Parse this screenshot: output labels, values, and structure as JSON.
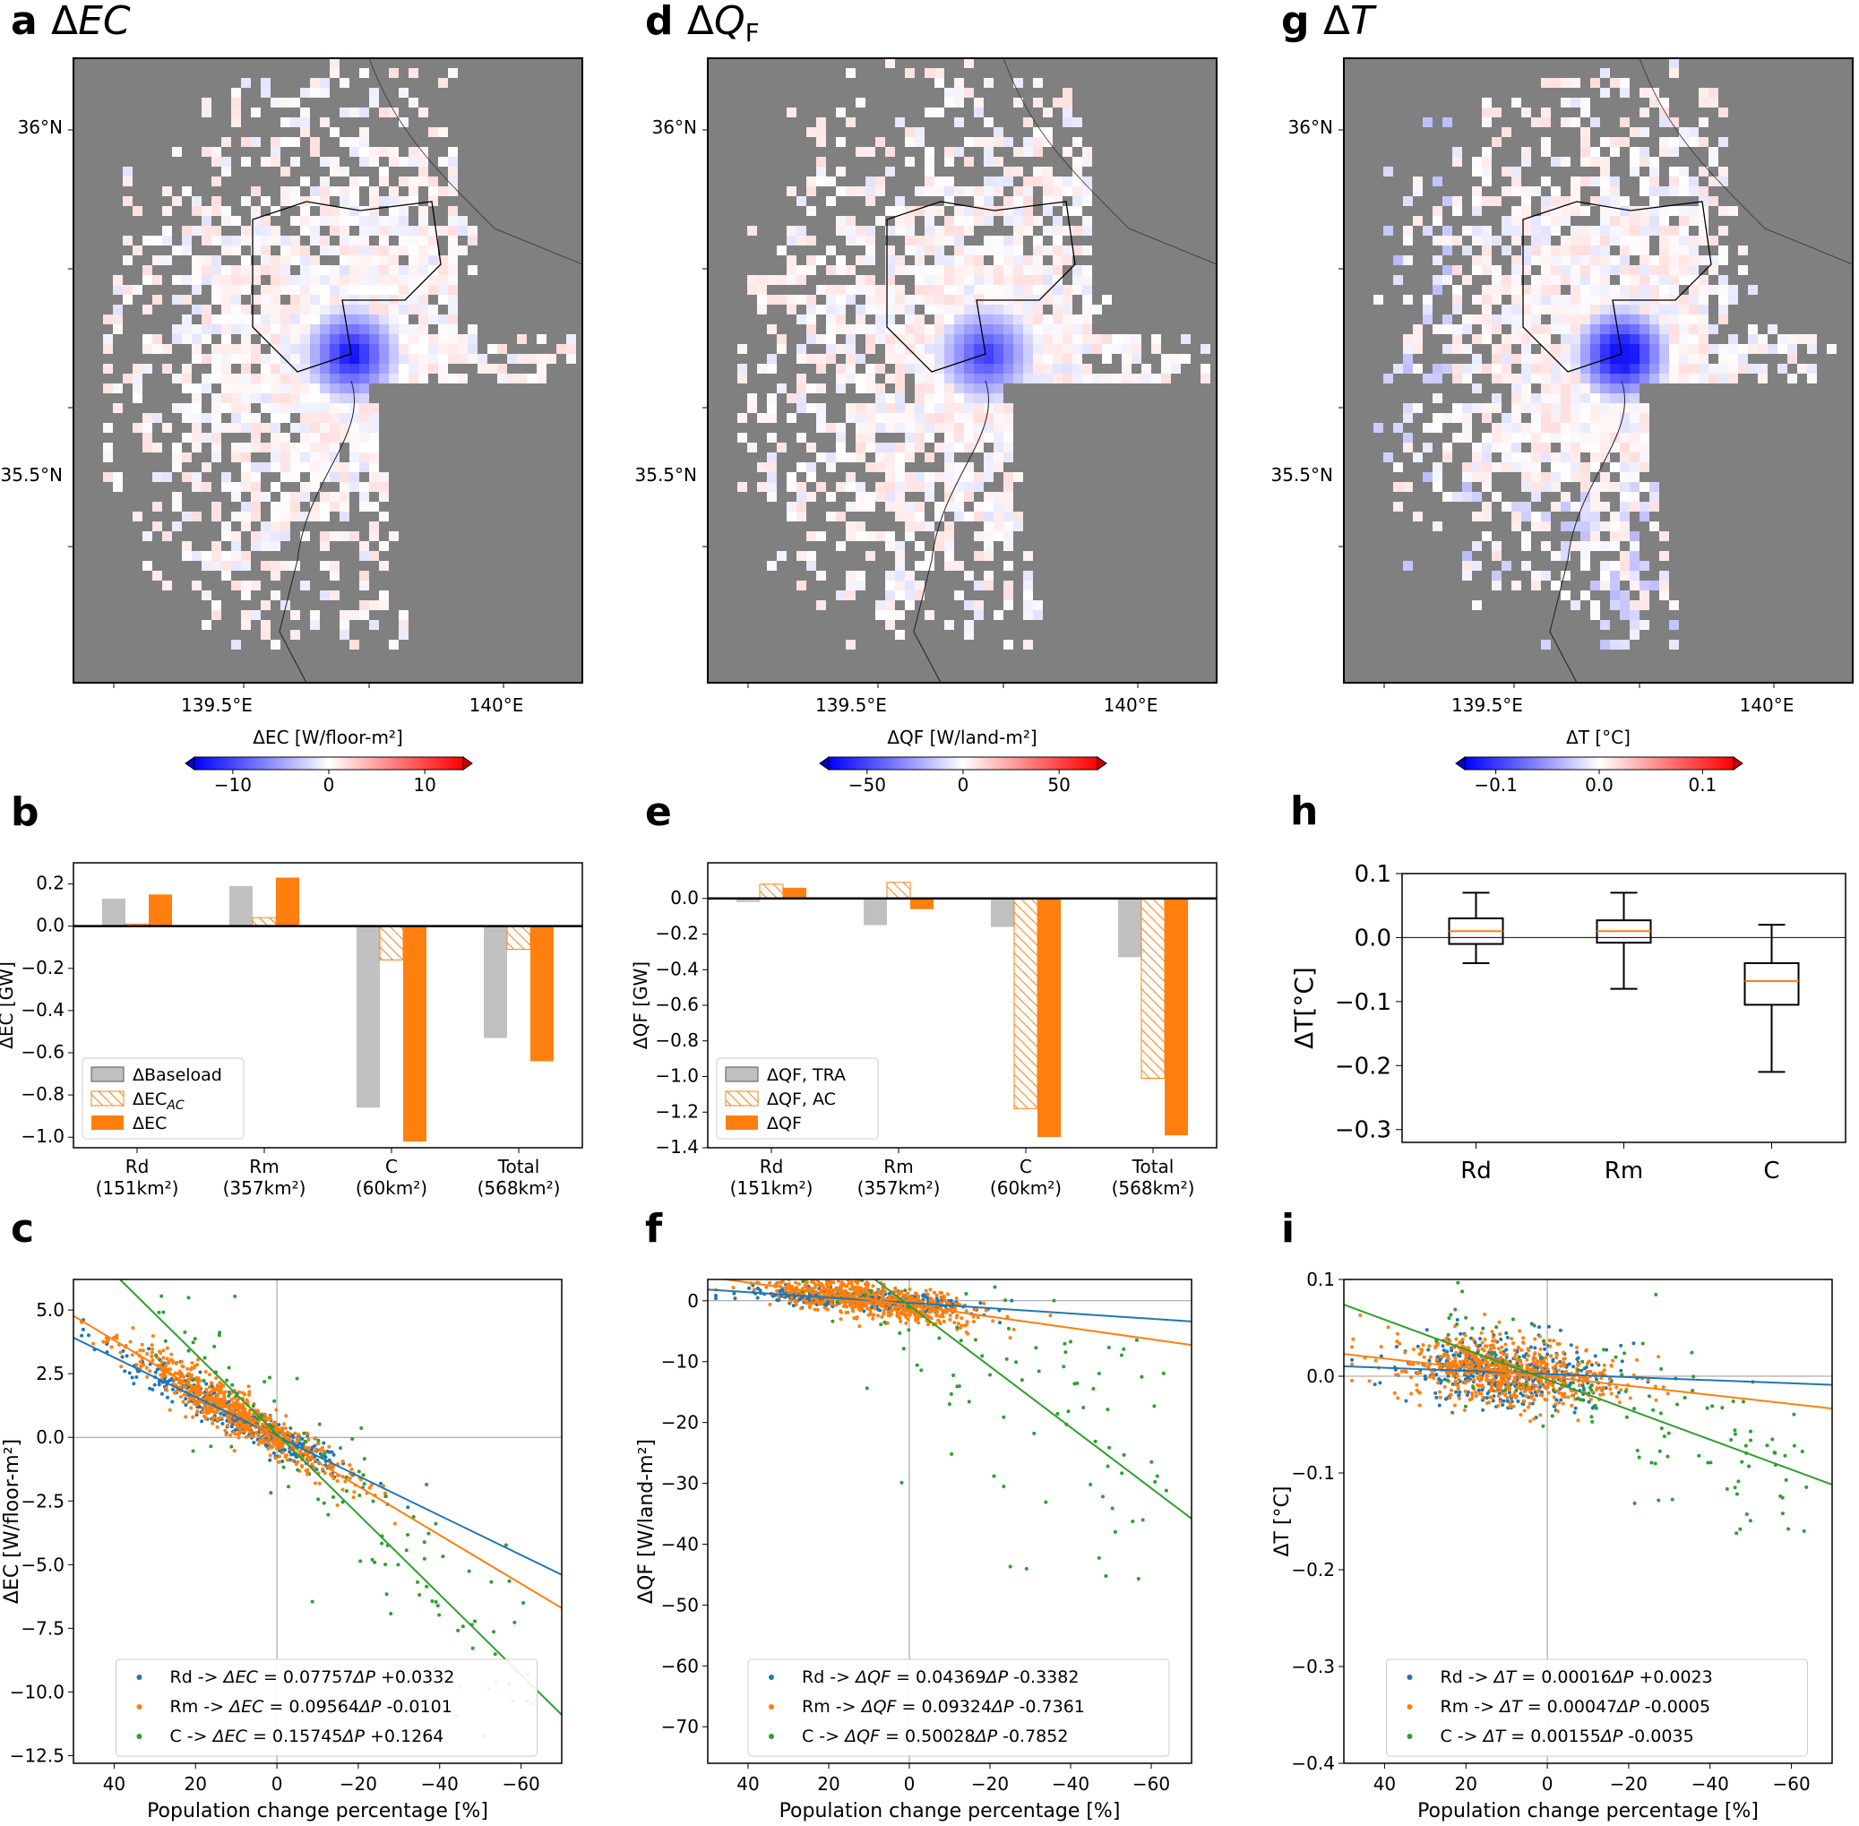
{
  "maps": [
    {
      "panel": "a",
      "title": "ΔEC",
      "colorbar_label": "ΔEC [W/floor-m²]",
      "colorbar_ticks": [
        "-10",
        "0",
        "10"
      ],
      "colorbar_range": [
        -14,
        14
      ],
      "center_strength": 1.0
    },
    {
      "panel": "d",
      "title": "ΔQ",
      "title_sub": "F",
      "colorbar_label": "ΔQF [W/land-m²]",
      "colorbar_ticks": [
        "-50",
        "0",
        "50"
      ],
      "colorbar_range": [
        -70,
        70
      ],
      "center_strength": 0.8
    },
    {
      "panel": "g",
      "title": "ΔT",
      "colorbar_label": "ΔT [°C]",
      "colorbar_ticks": [
        "-0.1",
        "0.0",
        "0.1"
      ],
      "colorbar_range": [
        -0.13,
        0.13
      ],
      "center_strength": 1.2
    }
  ],
  "map_axes": {
    "lat_labels": [
      "36°N",
      "35.5°N"
    ],
    "lon_labels": [
      "139.5°E",
      "140°E"
    ]
  },
  "colors": {
    "sea": "#808080",
    "land": "#ffffff",
    "blue": "#1f77b4",
    "orange": "#ff7f0e",
    "green": "#2ca02c",
    "gray": "#c0c0c0"
  },
  "chart_data": [
    {
      "panel": "b",
      "type": "bar",
      "ylabel": "ΔEC [GW]",
      "ylim": [
        -1.05,
        0.3
      ],
      "yticks": [
        "0.2",
        "0.0",
        "-0.2",
        "-0.4",
        "-0.6",
        "-0.8",
        "-1.0"
      ],
      "categories": [
        "Rd",
        "Rm",
        "C",
        "Total"
      ],
      "category_areas": [
        "(151km²)",
        "(357km²)",
        "(60km²)",
        "(568km²)"
      ],
      "series": [
        {
          "name": "ΔBaseload",
          "style": "gray",
          "values": [
            0.13,
            0.19,
            -0.86,
            -0.53
          ]
        },
        {
          "name": "ΔEC_AC",
          "style": "hatch",
          "values": [
            0.01,
            0.04,
            -0.16,
            -0.11
          ]
        },
        {
          "name": "ΔEC",
          "style": "orange",
          "values": [
            0.15,
            0.23,
            -1.02,
            -0.64
          ]
        }
      ]
    },
    {
      "panel": "e",
      "type": "bar",
      "ylabel": "ΔQF [GW]",
      "ylim": [
        -1.4,
        0.2
      ],
      "yticks": [
        "0.0",
        "-0.2",
        "-0.4",
        "-0.6",
        "-0.8",
        "-1.0",
        "-1.2",
        "-1.4"
      ],
      "categories": [
        "Rd",
        "Rm",
        "C",
        "Total"
      ],
      "category_areas": [
        "(151km²)",
        "(357km²)",
        "(60km²)",
        "(568km²)"
      ],
      "series": [
        {
          "name": "ΔQF, TRA",
          "style": "gray",
          "values": [
            -0.02,
            -0.15,
            -0.16,
            -0.33
          ]
        },
        {
          "name": "ΔQF, AC",
          "style": "hatch",
          "values": [
            0.08,
            0.09,
            -1.18,
            -1.01
          ]
        },
        {
          "name": "ΔQF",
          "style": "orange",
          "values": [
            0.06,
            -0.06,
            -1.34,
            -1.33
          ]
        }
      ]
    },
    {
      "panel": "h",
      "type": "box",
      "ylabel": "ΔT[°C]",
      "ylim": [
        -0.32,
        0.1
      ],
      "yticks": [
        "0.1",
        "0.0",
        "-0.1",
        "-0.2",
        "-0.3"
      ],
      "categories": [
        "Rd",
        "Rm",
        "C"
      ],
      "boxes": [
        {
          "whisker_low": -0.04,
          "q1": -0.01,
          "median": 0.01,
          "q3": 0.03,
          "whisker_high": 0.07
        },
        {
          "whisker_low": -0.08,
          "q1": -0.008,
          "median": 0.01,
          "q3": 0.027,
          "whisker_high": 0.07
        },
        {
          "whisker_low": -0.21,
          "q1": -0.105,
          "median": -0.068,
          "q3": -0.04,
          "whisker_high": 0.02
        }
      ]
    },
    {
      "panel": "c",
      "type": "scatter",
      "xlabel": "Population change percentage [%]",
      "ylabel": "ΔEC [W/floor-m²]",
      "xlim": [
        50,
        -70
      ],
      "ylim": [
        -12.8,
        6.2
      ],
      "xticks": [
        "40",
        "20",
        "0",
        "-20",
        "-40",
        "-60"
      ],
      "yticks": [
        "5.0",
        "2.5",
        "0.0",
        "-2.5",
        "-5.0",
        "-7.5",
        "-10.0",
        "-12.5"
      ],
      "fits": [
        {
          "group": "Rd",
          "slope": 0.07757,
          "intercept": 0.0332,
          "legend": "Rd -> ΔEC = 0.07757ΔP +0.0332"
        },
        {
          "group": "Rm",
          "slope": 0.09564,
          "intercept": -0.0101,
          "legend": "Rm -> ΔEC = 0.09564ΔP -0.0101"
        },
        {
          "group": "C",
          "slope": 0.15745,
          "intercept": 0.1264,
          "legend": "C -> ΔEC = 0.15745ΔP +0.1264"
        }
      ],
      "point_spread": [
        0.35,
        0.45,
        1.3
      ]
    },
    {
      "panel": "f",
      "type": "scatter",
      "xlabel": "Population change percentage [%]",
      "ylabel": "ΔQF [W/land-m²]",
      "xlim": [
        50,
        -70
      ],
      "ylim": [
        -76,
        3.5
      ],
      "xticks": [
        "40",
        "20",
        "0",
        "-20",
        "-40",
        "-60"
      ],
      "yticks": [
        "0",
        "-10",
        "-20",
        "-30",
        "-40",
        "-50",
        "-60",
        "-70"
      ],
      "fits": [
        {
          "group": "Rd",
          "slope": 0.04369,
          "intercept": -0.3382,
          "legend": "Rd -> ΔQF = 0.04369ΔP -0.3382"
        },
        {
          "group": "Rm",
          "slope": 0.09324,
          "intercept": -0.7361,
          "legend": "Rm -> ΔQF = 0.09324ΔP -0.7361"
        },
        {
          "group": "C",
          "slope": 0.50028,
          "intercept": -0.7852,
          "legend": "C -> ΔQF = 0.50028ΔP -0.7852"
        }
      ],
      "point_spread": [
        0.8,
        1.5,
        9
      ]
    },
    {
      "panel": "i",
      "type": "scatter",
      "xlabel": "Population change percentage [%]",
      "ylabel": "ΔT [°C]",
      "xlim": [
        50,
        -70
      ],
      "ylim": [
        -0.4,
        0.1
      ],
      "xticks": [
        "40",
        "20",
        "0",
        "-20",
        "-40",
        "-60"
      ],
      "yticks": [
        "0.1",
        "0.0",
        "-0.1",
        "-0.2",
        "-0.3",
        "-0.4"
      ],
      "fits": [
        {
          "group": "Rd",
          "slope": 0.00016,
          "intercept": 0.0023,
          "legend": "Rd -> ΔT = 0.00016ΔP +0.0023"
        },
        {
          "group": "Rm",
          "slope": 0.00047,
          "intercept": -0.0005,
          "legend": "Rm -> ΔT = 0.00047ΔP -0.0005"
        },
        {
          "group": "C",
          "slope": 0.00155,
          "intercept": -0.0035,
          "legend": "C -> ΔT = 0.00155ΔP -0.0035"
        }
      ],
      "point_spread": [
        0.018,
        0.018,
        0.03
      ]
    }
  ]
}
